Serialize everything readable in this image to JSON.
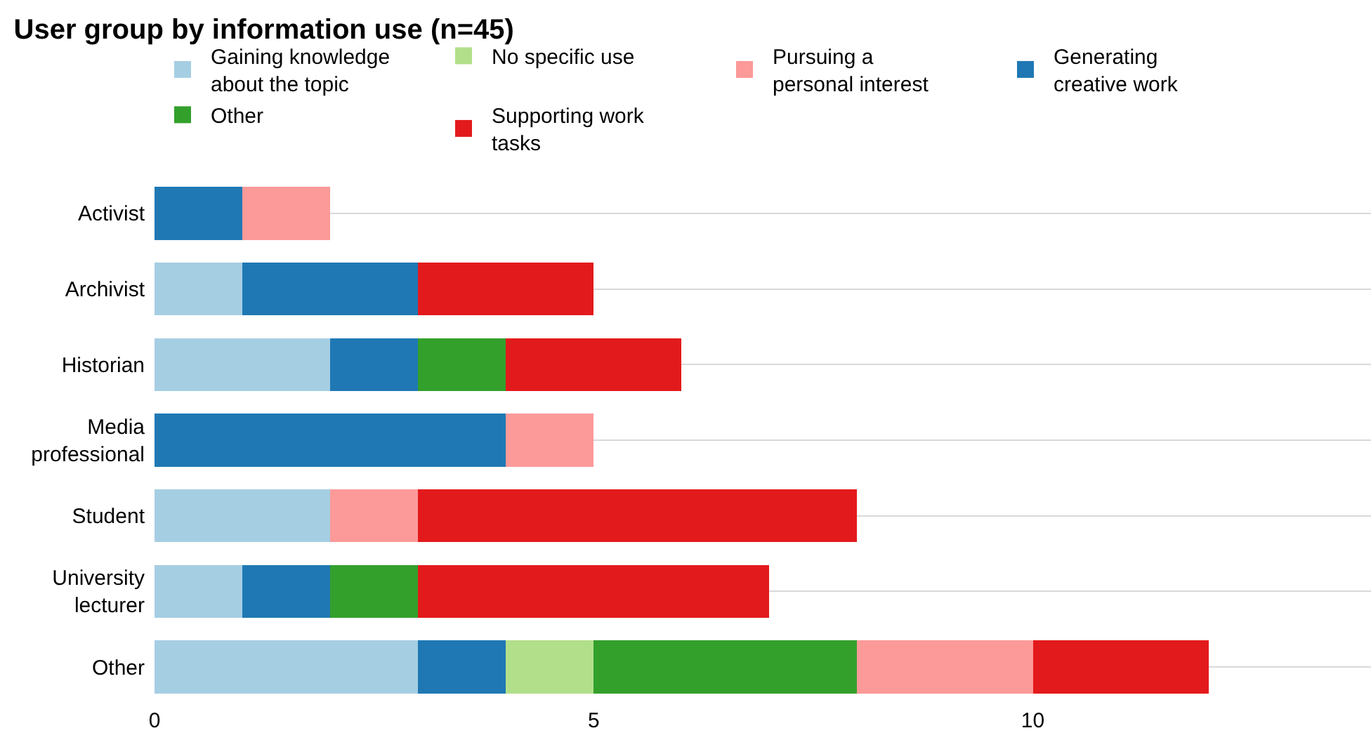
{
  "chart_data": {
    "type": "bar",
    "orientation": "horizontal",
    "stacked": true,
    "title": "User group by information use (n=45)",
    "categories": [
      "Activist",
      "Archivist",
      "Historian",
      "Media professional",
      "Student",
      "University lecturer",
      "Other"
    ],
    "series": [
      {
        "name": "Gaining knowledge about the topic",
        "color": "#a6cee3",
        "values": [
          0,
          1,
          2,
          0,
          2,
          1,
          3
        ]
      },
      {
        "name": "Generating creative work",
        "color": "#1f78b4",
        "values": [
          1,
          2,
          1,
          4,
          0,
          1,
          1
        ]
      },
      {
        "name": "No specific use",
        "color": "#b2df8a",
        "values": [
          0,
          0,
          0,
          0,
          0,
          0,
          1
        ]
      },
      {
        "name": "Other",
        "color": "#33a02c",
        "values": [
          0,
          0,
          1,
          0,
          0,
          1,
          3
        ]
      },
      {
        "name": "Pursuing a personal interest",
        "color": "#fb9a99",
        "values": [
          1,
          0,
          0,
          1,
          1,
          0,
          2
        ]
      },
      {
        "name": "Supporting work tasks",
        "color": "#e31a1c",
        "values": [
          0,
          2,
          2,
          0,
          5,
          4,
          2
        ]
      }
    ],
    "xlim": [
      0,
      13.85
    ],
    "xticks": [
      0,
      5,
      10
    ],
    "grid": "y",
    "legend": "top"
  }
}
